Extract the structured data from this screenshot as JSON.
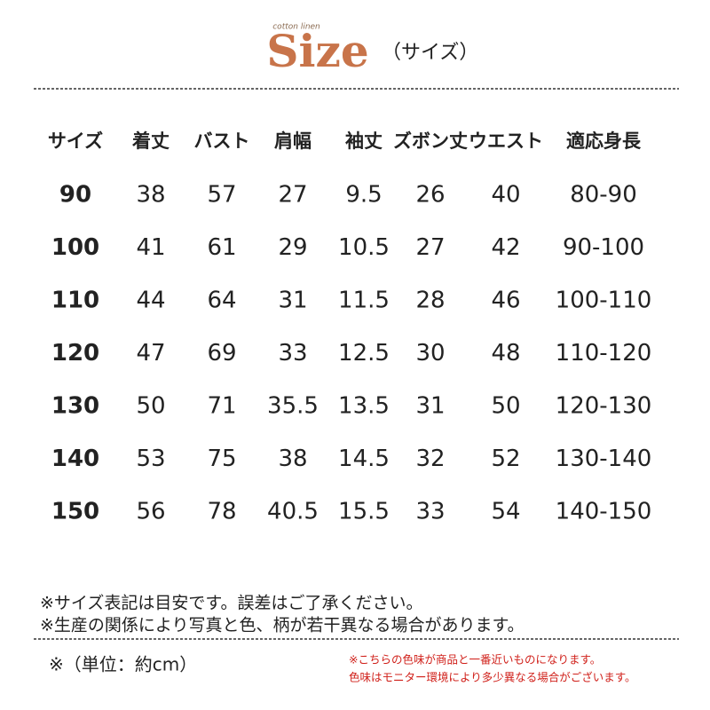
{
  "header": {
    "tagline": "cotton linen",
    "title": "Size",
    "subtitle": "（サイズ）"
  },
  "table": {
    "headers": [
      "サイズ",
      "着丈",
      "バスト",
      "肩幅",
      "袖丈",
      "ズボン丈",
      "ウエスト",
      "適応身長"
    ],
    "rows": [
      [
        "90",
        "38",
        "57",
        "27",
        "9.5",
        "26",
        "40",
        "80-90"
      ],
      [
        "100",
        "41",
        "61",
        "29",
        "10.5",
        "27",
        "42",
        "90-100"
      ],
      [
        "110",
        "44",
        "64",
        "31",
        "11.5",
        "28",
        "46",
        "100-110"
      ],
      [
        "120",
        "47",
        "69",
        "33",
        "12.5",
        "30",
        "48",
        "110-120"
      ],
      [
        "130",
        "50",
        "71",
        "35.5",
        "13.5",
        "31",
        "50",
        "120-130"
      ],
      [
        "140",
        "53",
        "75",
        "38",
        "14.5",
        "32",
        "52",
        "130-140"
      ],
      [
        "150",
        "56",
        "78",
        "40.5",
        "15.5",
        "33",
        "54",
        "140-150"
      ]
    ]
  },
  "notes": [
    "※サイズ表記は目安です。誤差はご了承ください。",
    "※生産の関係により写真と色、柄が若干異なる場合があります。"
  ],
  "unit": "※（単位：約cm）",
  "color_notes": [
    "※こちらの色味が商品と一番近いものになります。",
    "色味はモニター環境により多少異なる場合がございます。"
  ]
}
